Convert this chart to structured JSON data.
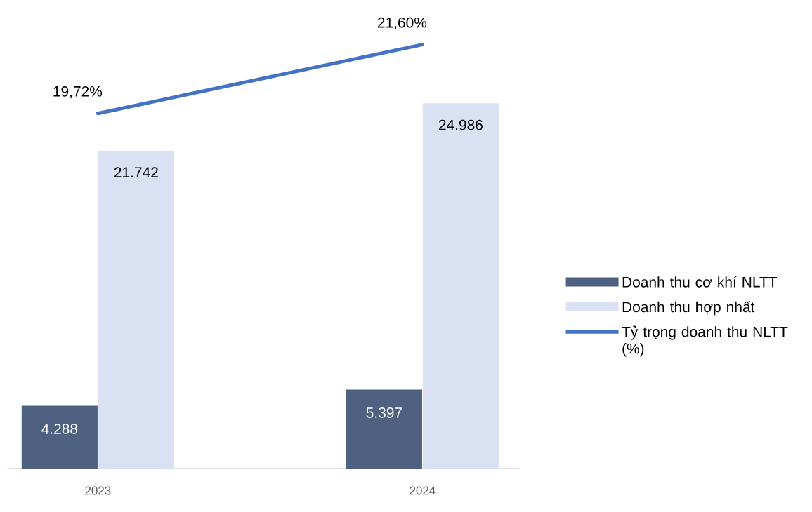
{
  "chart_data": {
    "type": "bar",
    "categories": [
      "2023",
      "2024"
    ],
    "series": [
      {
        "name": "Doanh thu cơ khí NLTT",
        "color": "#4f6180",
        "values": [
          4288,
          5397
        ],
        "value_labels": [
          "4.288",
          "5.397"
        ]
      },
      {
        "name": "Doanh thu hợp nhất",
        "color": "#dae1f3",
        "values": [
          21742,
          24986
        ],
        "value_labels": [
          "21.742",
          "24.986"
        ]
      },
      {
        "name": "Tỷ trọng doanh thu NLTT (%)",
        "type": "line",
        "axis": "y2",
        "color": "#4472c4",
        "values": [
          19.72,
          21.6
        ],
        "value_labels": [
          "19,72%",
          "21,60%"
        ]
      }
    ],
    "legend": "right",
    "marker": "none"
  }
}
